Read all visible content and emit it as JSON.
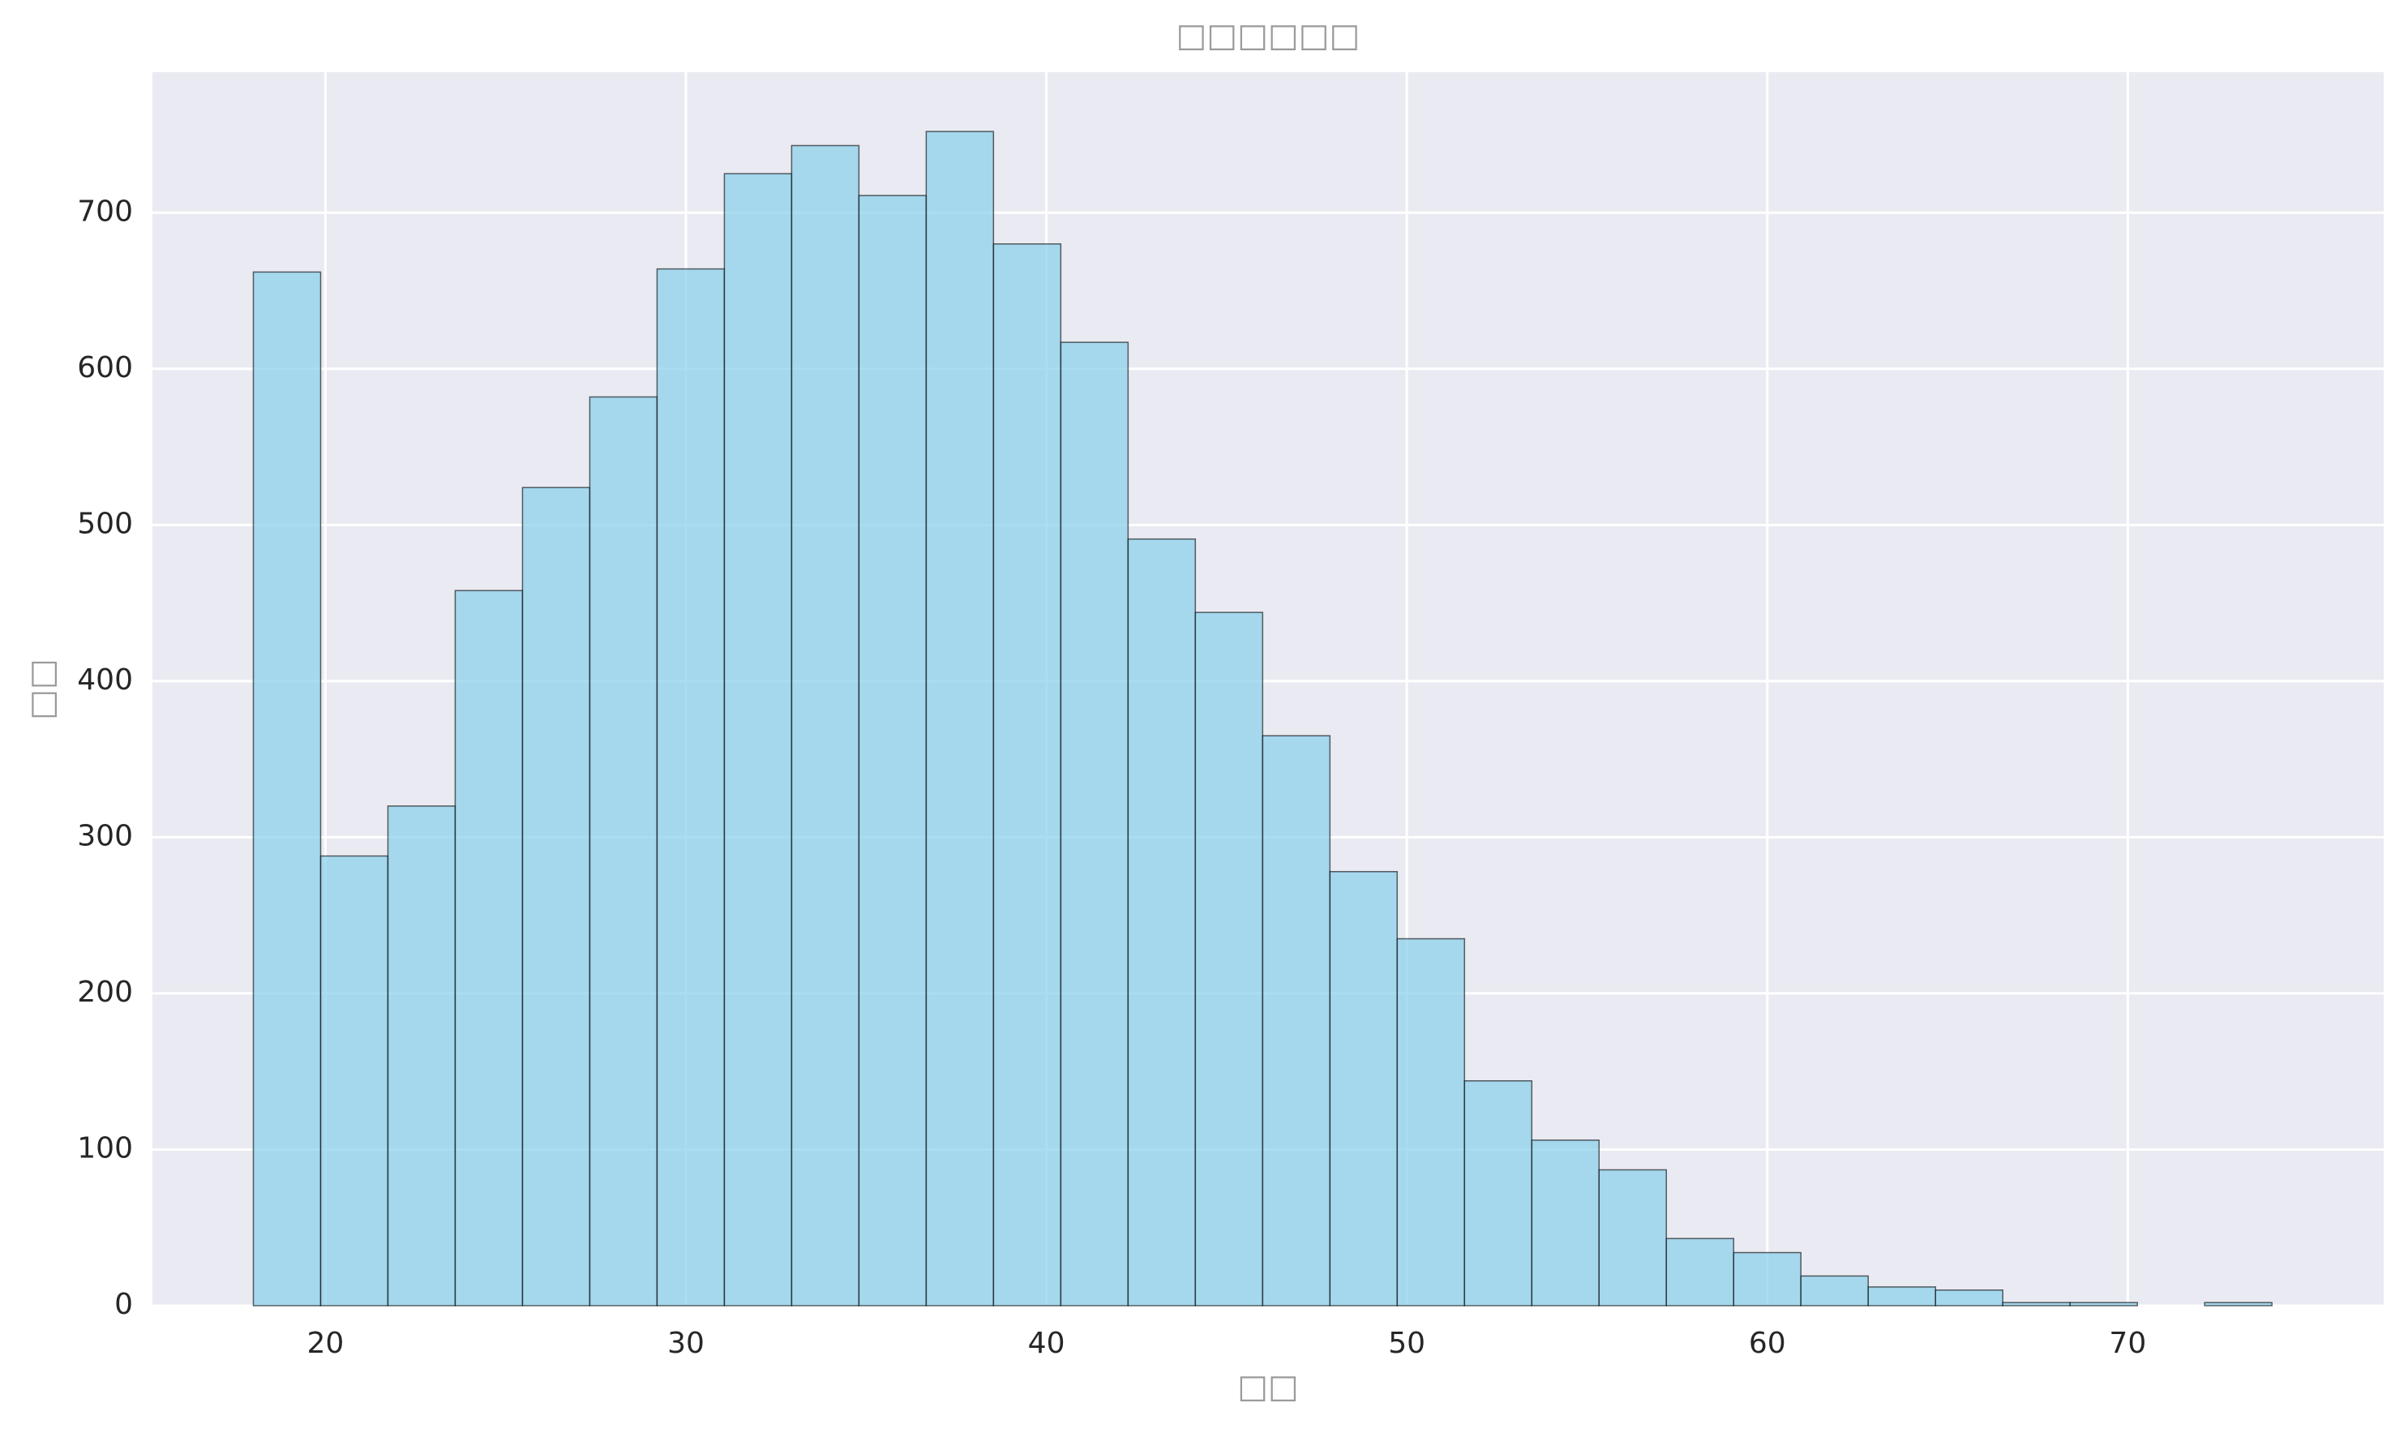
{
  "chart_data": {
    "type": "histogram",
    "title": "□□□□□□",
    "x_label": "□□",
    "y_label": "□□",
    "bins": [
      18,
      19.867,
      21.733,
      23.6,
      25.467,
      27.333,
      29.2,
      31.067,
      32.933,
      34.8,
      36.667,
      38.533,
      40.4,
      42.267,
      44.133,
      46,
      47.867,
      49.733,
      51.6,
      53.467,
      55.333,
      57.2,
      59.067,
      60.933,
      62.8,
      64.667,
      66.533,
      68.4,
      70.267,
      72.133,
      74
    ],
    "counts": [
      662,
      288,
      320,
      458,
      524,
      582,
      664,
      725,
      743,
      711,
      752,
      680,
      617,
      491,
      444,
      365,
      278,
      235,
      144,
      106,
      87,
      43,
      34,
      19,
      12,
      10,
      2,
      2,
      0,
      2
    ],
    "color": "#87ceeb",
    "edge_color": "#000000",
    "xlim": [
      15.2,
      77.1
    ],
    "xticks": [
      20,
      30,
      40,
      50,
      60,
      70
    ],
    "ylim": [
      0,
      790
    ],
    "yticks": [
      0,
      100,
      200,
      300,
      400,
      500,
      600,
      700
    ],
    "grid": true
  }
}
